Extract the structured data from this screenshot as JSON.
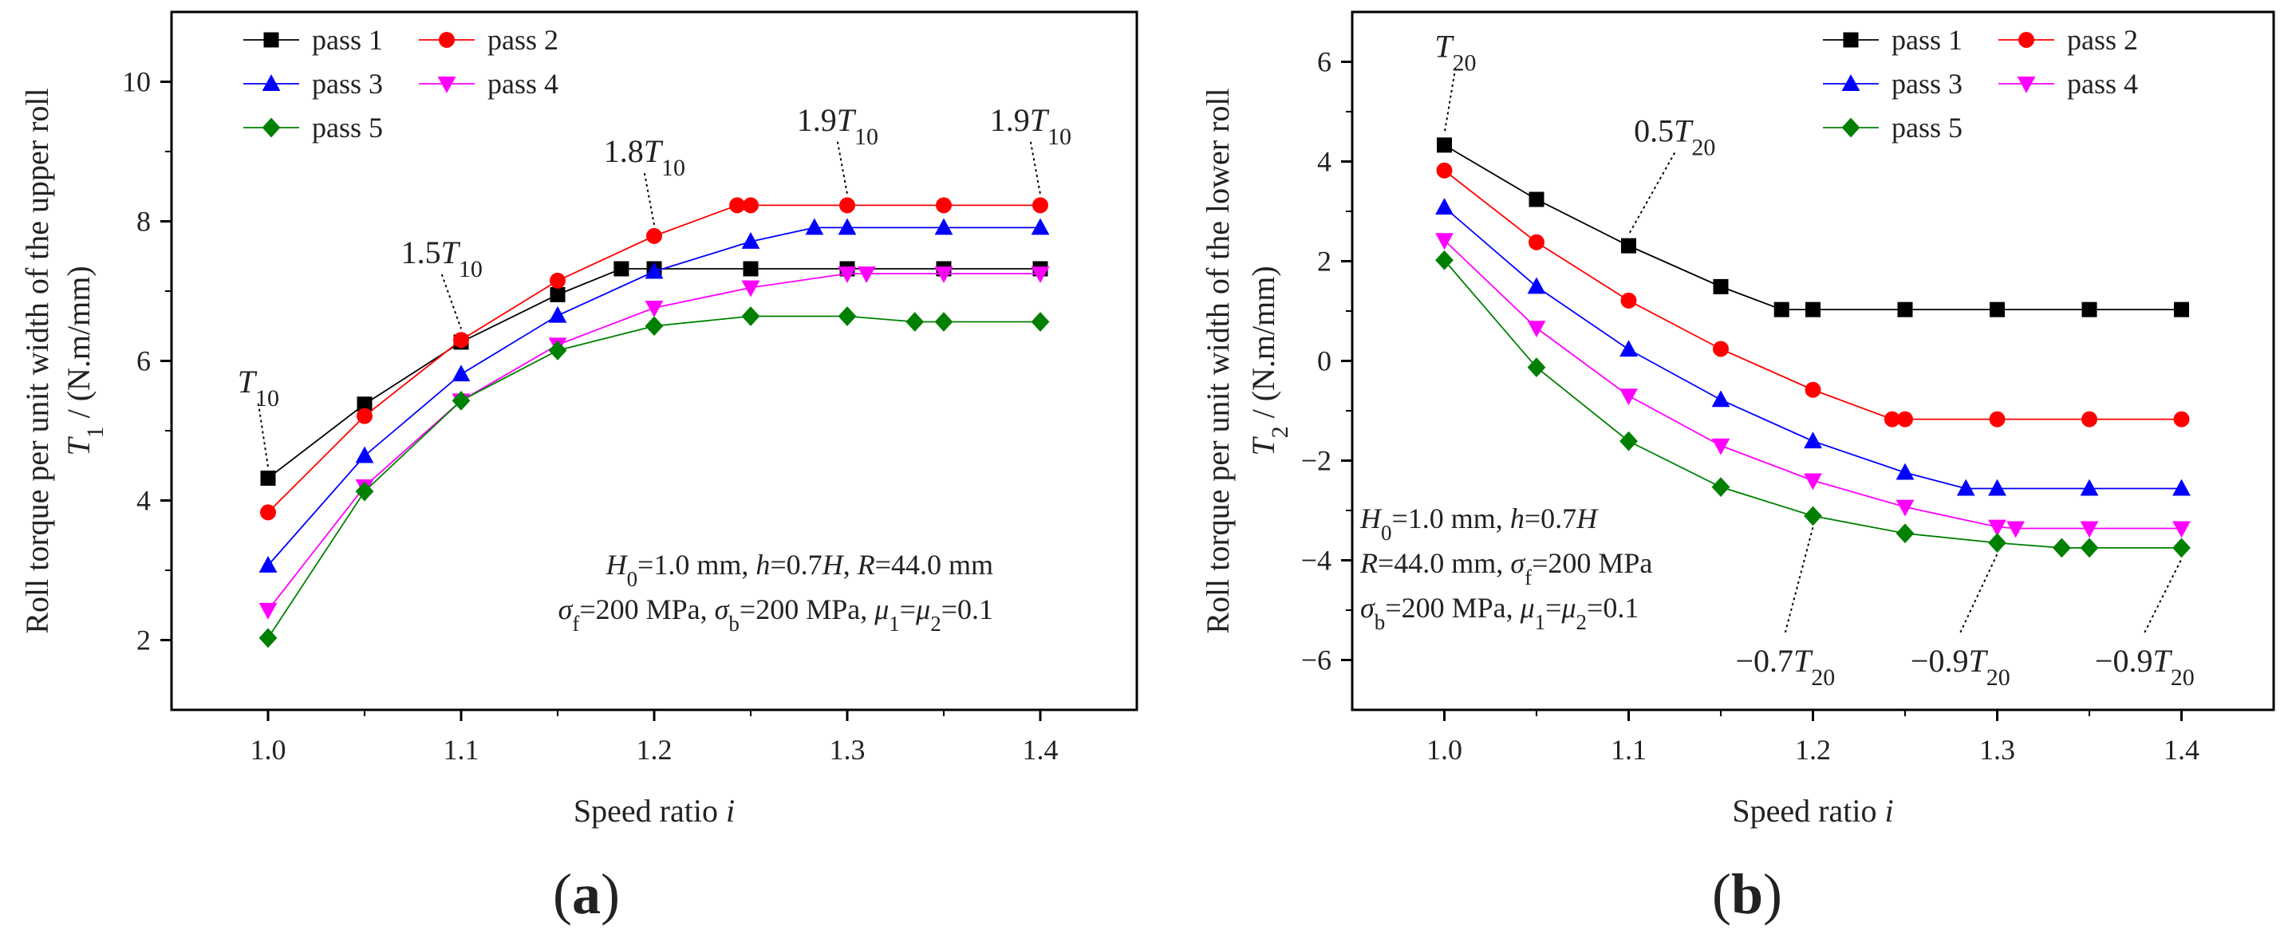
{
  "chart_data": [
    {
      "type": "line",
      "panel_label": "(a)",
      "title": "",
      "xlabel": "Speed ratio i",
      "ylabel": "Roll torque per unit width of the upper roll T1 / (N.m/mm)",
      "xlim": [
        0.95,
        1.45
      ],
      "ylim": [
        1,
        11
      ],
      "xticks": [
        "1.0",
        "1.1",
        "1.2",
        "1.3",
        "1.4"
      ],
      "yticks": [
        "2",
        "4",
        "6",
        "8",
        "10"
      ],
      "legend_position": "top-left",
      "series": [
        {
          "name": "pass 1",
          "marker": "square",
          "color": "#000000",
          "x": [
            1.0,
            1.05,
            1.1,
            1.15,
            1.183,
            1.2,
            1.25,
            1.3,
            1.35,
            1.4
          ],
          "y": [
            4.32,
            5.38,
            6.27,
            6.95,
            7.32,
            7.32,
            7.32,
            7.32,
            7.32,
            7.32
          ]
        },
        {
          "name": "pass 2",
          "marker": "circle",
          "color": "#ff0000",
          "x": [
            1.0,
            1.05,
            1.1,
            1.15,
            1.2,
            1.243,
            1.25,
            1.3,
            1.35,
            1.4
          ],
          "y": [
            3.83,
            5.21,
            6.3,
            7.15,
            7.79,
            8.23,
            8.23,
            8.23,
            8.23,
            8.23
          ]
        },
        {
          "name": "pass 3",
          "marker": "triangle-up",
          "color": "#0000ff",
          "x": [
            1.0,
            1.05,
            1.1,
            1.15,
            1.2,
            1.25,
            1.283,
            1.3,
            1.35,
            1.4
          ],
          "y": [
            3.07,
            4.64,
            5.81,
            6.65,
            7.28,
            7.71,
            7.91,
            7.91,
            7.91,
            7.91
          ]
        },
        {
          "name": "pass 4",
          "marker": "triangle-down",
          "color": "#ff00ff",
          "x": [
            1.0,
            1.05,
            1.1,
            1.15,
            1.2,
            1.25,
            1.3,
            1.31,
            1.35,
            1.4
          ],
          "y": [
            2.43,
            4.2,
            5.43,
            6.23,
            6.76,
            7.05,
            7.25,
            7.25,
            7.25,
            7.25
          ]
        },
        {
          "name": "pass 5",
          "marker": "diamond",
          "color": "#008000",
          "x": [
            1.0,
            1.05,
            1.1,
            1.15,
            1.2,
            1.25,
            1.3,
            1.335,
            1.35,
            1.4
          ],
          "y": [
            2.03,
            4.13,
            5.43,
            6.15,
            6.5,
            6.64,
            6.64,
            6.56,
            6.56,
            6.56
          ]
        }
      ],
      "annotations": [
        {
          "text": "T10",
          "x": 1.0,
          "y": 4.32,
          "label_x": 0.995,
          "label_y": 5.55
        },
        {
          "text": "1.5T10",
          "x": 1.1,
          "y": 6.3,
          "label_x": 1.09,
          "label_y": 7.4
        },
        {
          "text": "1.8T10",
          "x": 1.2,
          "y": 7.79,
          "label_x": 1.195,
          "label_y": 8.85
        },
        {
          "text": "1.9T10",
          "x": 1.3,
          "y": 8.23,
          "label_x": 1.295,
          "label_y": 9.3
        },
        {
          "text": "1.9T10",
          "x": 1.4,
          "y": 8.23,
          "label_x": 1.395,
          "label_y": 9.3
        }
      ],
      "notes": [
        "H0=1.0 mm, h=0.7H, R=44.0 mm",
        "σf=200 MPa, σb=200 MPa, μ1=μ2=0.1"
      ]
    },
    {
      "type": "line",
      "panel_label": "(b)",
      "title": "",
      "xlabel": "Speed ratio i",
      "ylabel": "Roll torque per unit width of the lower roll T2 / (N.m/mm)",
      "xlim": [
        0.95,
        1.45
      ],
      "ylim": [
        -7,
        7
      ],
      "xticks": [
        "1.0",
        "1.1",
        "1.2",
        "1.3",
        "1.4"
      ],
      "yticks": [
        "-6",
        "-4",
        "-2",
        "0",
        "2",
        "4",
        "6"
      ],
      "legend_position": "top-right",
      "series": [
        {
          "name": "pass 1",
          "marker": "square",
          "color": "#000000",
          "x": [
            1.0,
            1.05,
            1.1,
            1.15,
            1.183,
            1.2,
            1.25,
            1.3,
            1.35,
            1.4
          ],
          "y": [
            4.33,
            3.24,
            2.31,
            1.49,
            1.03,
            1.03,
            1.03,
            1.03,
            1.03,
            1.03
          ]
        },
        {
          "name": "pass 2",
          "marker": "circle",
          "color": "#ff0000",
          "x": [
            1.0,
            1.05,
            1.1,
            1.15,
            1.2,
            1.243,
            1.25,
            1.3,
            1.35,
            1.4
          ],
          "y": [
            3.82,
            2.38,
            1.21,
            0.24,
            -0.58,
            -1.17,
            -1.17,
            -1.17,
            -1.17,
            -1.17
          ]
        },
        {
          "name": "pass 3",
          "marker": "triangle-up",
          "color": "#0000ff",
          "x": [
            1.0,
            1.05,
            1.1,
            1.15,
            1.2,
            1.25,
            1.283,
            1.3,
            1.35,
            1.4
          ],
          "y": [
            3.08,
            1.49,
            0.23,
            -0.78,
            -1.61,
            -2.24,
            -2.56,
            -2.56,
            -2.56,
            -2.56
          ]
        },
        {
          "name": "pass 4",
          "marker": "triangle-down",
          "color": "#ff00ff",
          "x": [
            1.0,
            1.05,
            1.1,
            1.15,
            1.2,
            1.25,
            1.3,
            1.31,
            1.35,
            1.4
          ],
          "y": [
            2.42,
            0.66,
            -0.7,
            -1.7,
            -2.4,
            -2.93,
            -3.33,
            -3.36,
            -3.36,
            -3.36
          ]
        },
        {
          "name": "pass 5",
          "marker": "diamond",
          "color": "#008000",
          "x": [
            1.0,
            1.05,
            1.1,
            1.15,
            1.2,
            1.25,
            1.3,
            1.335,
            1.35,
            1.4
          ],
          "y": [
            2.02,
            -0.13,
            -1.61,
            -2.53,
            -3.11,
            -3.46,
            -3.65,
            -3.75,
            -3.75,
            -3.75
          ]
        }
      ],
      "annotations": [
        {
          "text": "T20",
          "x": 1.0,
          "y": 4.33,
          "label_x": 1.006,
          "label_y": 6.1
        },
        {
          "text": "0.5T20",
          "x": 1.1,
          "y": 2.31,
          "label_x": 1.125,
          "label_y": 4.4
        },
        {
          "text": "−0.7T20",
          "x": 1.2,
          "y": -3.11,
          "label_x": 1.185,
          "label_y": -6.15
        },
        {
          "text": "−0.9T20",
          "x": 1.3,
          "y": -3.65,
          "label_x": 1.28,
          "label_y": -6.15
        },
        {
          "text": "−0.9T20",
          "x": 1.4,
          "y": -3.75,
          "label_x": 1.38,
          "label_y": -6.15
        }
      ],
      "notes": [
        "H0=1.0 mm, h=0.7H",
        "R=44.0 mm, σf=200 MPa",
        "σb=200 MPa, μ1=μ2=0.1"
      ]
    }
  ]
}
